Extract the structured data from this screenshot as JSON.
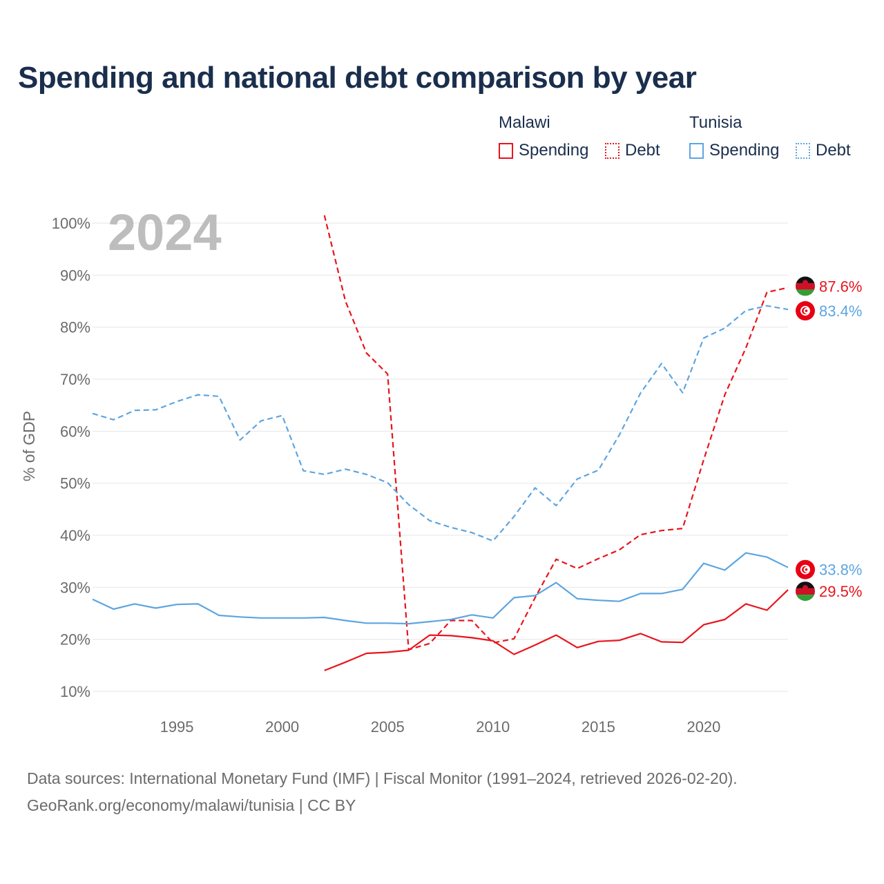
{
  "title": "Spending and national debt comparison by year",
  "legend": {
    "groups": [
      {
        "label": "Malawi",
        "spending_label": "Spending",
        "debt_label": "Debt"
      },
      {
        "label": "Tunisia",
        "spending_label": "Spending",
        "debt_label": "Debt"
      }
    ]
  },
  "colors": {
    "malawi": "#e8141d",
    "tunisia": "#5da5e0",
    "grid": "#e6e6e6",
    "year_watermark": "#bdbdbd"
  },
  "sources": {
    "line1": "Data sources: International Monetary Fund (IMF) | Fiscal Monitor (1991–2024, retrieved 2026-02-20).",
    "line2": "GeoRank.org/economy/malawi/tunisia | CC BY"
  },
  "chart_data": {
    "type": "line",
    "year_label": "2024",
    "ylabel": "% of GDP",
    "xlim": [
      1991,
      2024
    ],
    "ylim": [
      10,
      100
    ],
    "y_ticks": [
      10,
      20,
      30,
      40,
      50,
      60,
      70,
      80,
      90,
      100
    ],
    "y_tick_labels": [
      "10%",
      "20%",
      "30%",
      "40%",
      "50%",
      "60%",
      "70%",
      "80%",
      "90%",
      "100%"
    ],
    "x_ticks": [
      1995,
      2000,
      2005,
      2010,
      2015,
      2020
    ],
    "x_tick_labels": [
      "1995",
      "2000",
      "2005",
      "2010",
      "2015",
      "2020"
    ],
    "series": [
      {
        "name": "Malawi Debt",
        "country": "malawi",
        "style": "dashed",
        "x": [
          2002,
          2003,
          2004,
          2005,
          2006,
          2007,
          2008,
          2009,
          2010,
          2011,
          2012,
          2013,
          2014,
          2015,
          2016,
          2017,
          2018,
          2019,
          2020,
          2021,
          2022,
          2023,
          2024
        ],
        "values": [
          101.5,
          85,
          75,
          71,
          18,
          19.2,
          23.6,
          23.6,
          19.3,
          20.1,
          28,
          35.4,
          33.6,
          35.5,
          37.2,
          40.1,
          40.9,
          41.3,
          54.5,
          67,
          76,
          86.7,
          87.6
        ],
        "end_label": "87.6%"
      },
      {
        "name": "Tunisia Debt",
        "country": "tunisia",
        "style": "dashed",
        "x": [
          1991,
          1992,
          1993,
          1994,
          1995,
          1996,
          1997,
          1998,
          1999,
          2000,
          2001,
          2002,
          2003,
          2004,
          2005,
          2006,
          2007,
          2008,
          2009,
          2010,
          2011,
          2012,
          2013,
          2014,
          2015,
          2016,
          2017,
          2018,
          2019,
          2020,
          2021,
          2022,
          2023,
          2024
        ],
        "values": [
          63.4,
          62.2,
          64,
          64.1,
          65.7,
          67,
          66.7,
          58.3,
          62,
          63,
          52.4,
          51.7,
          52.7,
          51.7,
          50.1,
          45.9,
          42.8,
          41.5,
          40.5,
          38.9,
          43.6,
          49.1,
          45.7,
          50.8,
          52.5,
          59.3,
          67.3,
          73,
          67.4,
          77.9,
          79.8,
          83.2,
          84.1,
          83.4
        ],
        "end_label": "83.4%"
      },
      {
        "name": "Tunisia Spending",
        "country": "tunisia",
        "style": "solid",
        "x": [
          1991,
          1992,
          1993,
          1994,
          1995,
          1996,
          1997,
          1998,
          1999,
          2000,
          2001,
          2002,
          2003,
          2004,
          2005,
          2006,
          2007,
          2008,
          2009,
          2010,
          2011,
          2012,
          2013,
          2014,
          2015,
          2016,
          2017,
          2018,
          2019,
          2020,
          2021,
          2022,
          2023,
          2024
        ],
        "values": [
          27.7,
          25.8,
          26.8,
          26,
          26.7,
          26.8,
          24.6,
          24.3,
          24.1,
          24.1,
          24.1,
          24.2,
          23.6,
          23.1,
          23.1,
          23,
          23.4,
          23.8,
          24.7,
          24.1,
          28,
          28.4,
          30.9,
          27.8,
          27.5,
          27.3,
          28.8,
          28.8,
          29.6,
          34.6,
          33.3,
          36.6,
          35.8,
          33.8
        ],
        "end_label": "33.8%"
      },
      {
        "name": "Malawi Spending",
        "country": "malawi",
        "style": "solid",
        "x": [
          2002,
          2003,
          2004,
          2005,
          2006,
          2007,
          2008,
          2009,
          2010,
          2011,
          2012,
          2013,
          2014,
          2015,
          2016,
          2017,
          2018,
          2019,
          2020,
          2021,
          2022,
          2023,
          2024
        ],
        "values": [
          14,
          15.6,
          17.3,
          17.5,
          17.9,
          20.8,
          20.7,
          20.3,
          19.7,
          17.1,
          18.9,
          20.8,
          18.4,
          19.6,
          19.8,
          21.1,
          19.5,
          19.4,
          22.8,
          23.8,
          26.8,
          25.6,
          29.5
        ],
        "end_label": "29.5%"
      }
    ]
  }
}
